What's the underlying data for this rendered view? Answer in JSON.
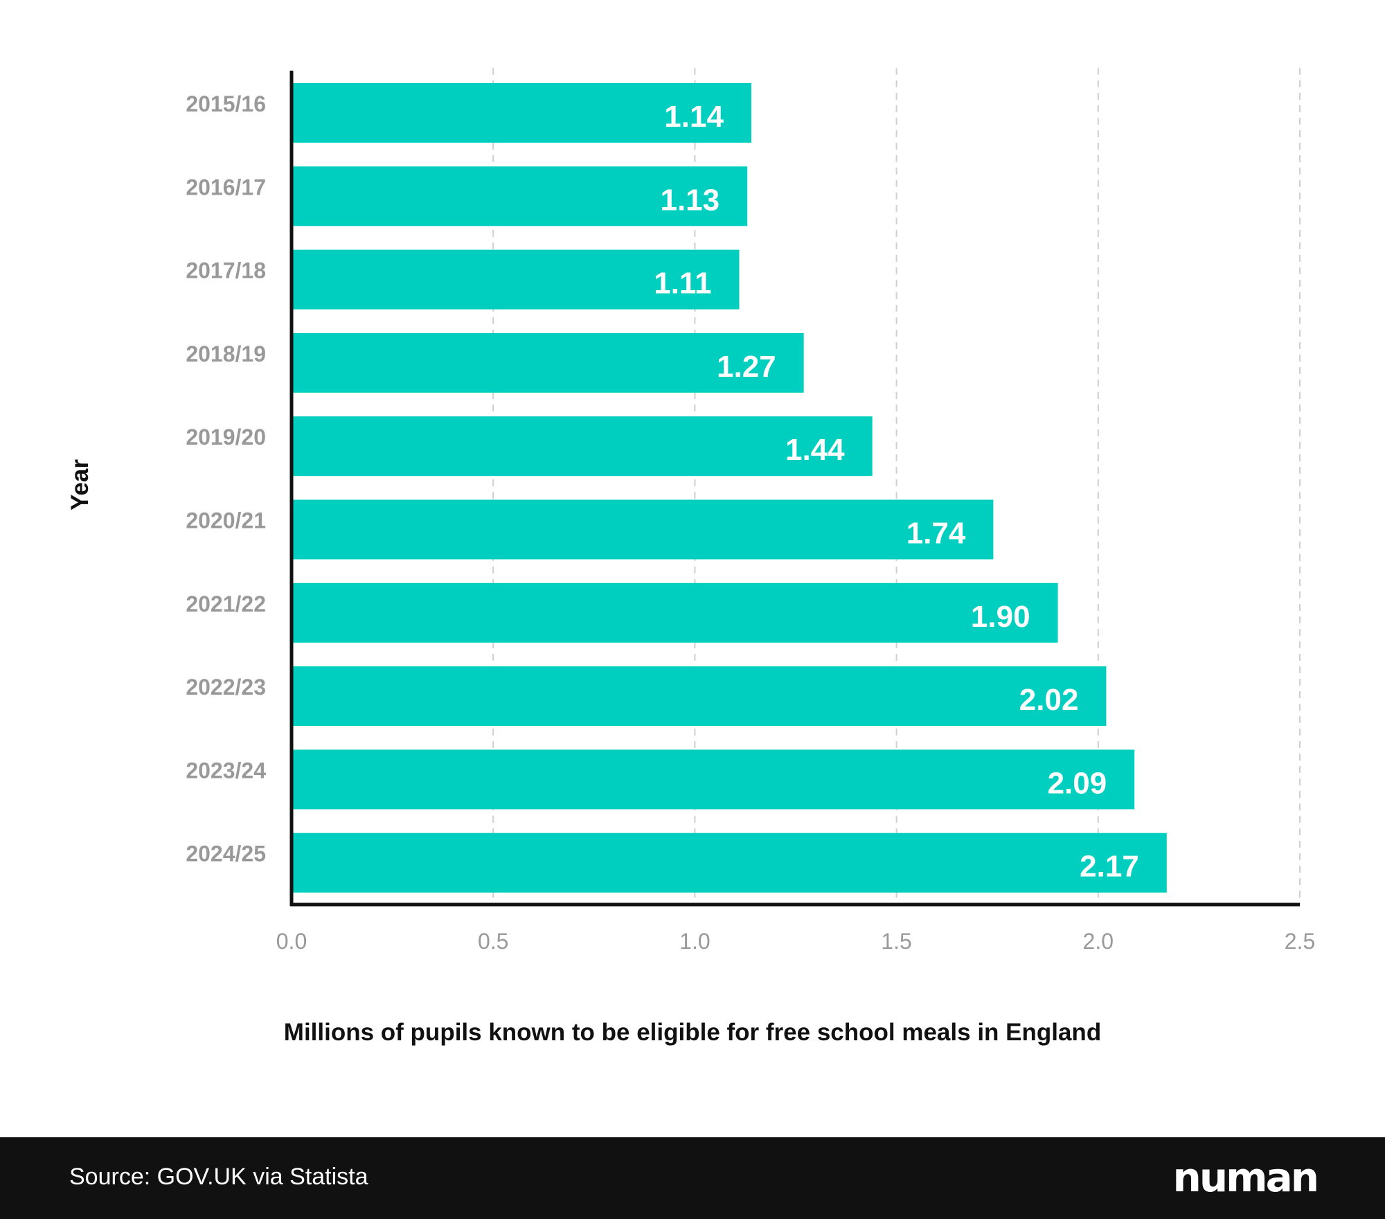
{
  "chart_data": {
    "type": "bar",
    "orientation": "horizontal",
    "categories": [
      "2015/16",
      "2016/17",
      "2017/18",
      "2018/19",
      "2019/20",
      "2020/21",
      "2021/22",
      "2022/23",
      "2023/24",
      "2024/25"
    ],
    "values": [
      1.14,
      1.13,
      1.11,
      1.27,
      1.44,
      1.74,
      1.9,
      2.02,
      2.09,
      2.17
    ],
    "value_labels": [
      "1.14",
      "1.13",
      "1.11",
      "1.27",
      "1.44",
      "1.74",
      "1.90",
      "2.02",
      "2.09",
      "2.17"
    ],
    "xlabel": "Millions of pupils known to be eligible for free school meals in England",
    "ylabel": "Year",
    "xlim": [
      0,
      2.5
    ],
    "xticks": [
      "0.0",
      "0.5",
      "1.0",
      "1.5",
      "2.0",
      "2.5"
    ],
    "grid": "vertical dashed",
    "bar_color": "#00CFBF"
  },
  "footer": {
    "source": "Source: GOV.UK via Statista",
    "logo": "numan"
  }
}
